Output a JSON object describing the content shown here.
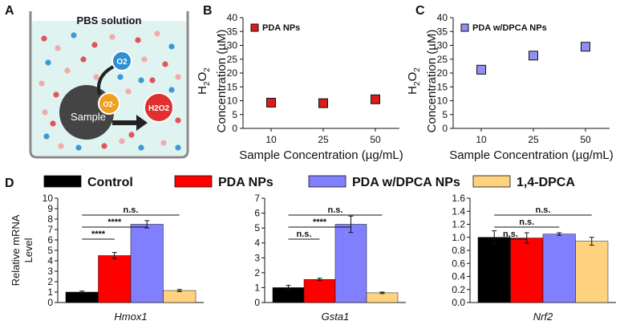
{
  "panels": {
    "a": "A",
    "b": "B",
    "c": "C",
    "d": "D"
  },
  "schematic": {
    "title": "PBS solution",
    "sample_label": "Sample",
    "o2_label": "O2",
    "o2_minus_label": "O2-",
    "h2o2_label": "H2O2"
  },
  "legend_d": [
    "Control",
    "PDA NPs",
    "PDA w/DPCA NPs",
    "1,4-DPCA"
  ],
  "colors": {
    "control": "#000000",
    "pda": "#ff0000",
    "pda_dpca": "#8080ff",
    "dpca": "#ffd27f",
    "marker_b": "#d91c1c",
    "marker_c": "#8f8ff5",
    "tank_water": "#dff3f1",
    "sample": "#444444"
  },
  "chart_data": [
    {
      "id": "B",
      "type": "scatter",
      "title": "",
      "legend": "PDA NPs",
      "xlabel": "Sample Concentration (µg/mL)",
      "ylabel": "H2O2 Concentration (µM)",
      "categories": [
        "10",
        "25",
        "50"
      ],
      "values": [
        9.3,
        9.1,
        10.5
      ],
      "errors": [
        1.2,
        1.2,
        1.0
      ],
      "ylim": [
        0,
        40
      ],
      "yticks": [
        "0",
        "5",
        "10",
        "15",
        "20",
        "25",
        "30",
        "35",
        "40"
      ]
    },
    {
      "id": "C",
      "type": "scatter",
      "title": "",
      "legend": "PDA w/DPCA NPs",
      "xlabel": "Sample Concentration (µg/mL)",
      "ylabel": "H2O2 Concentration (µM)",
      "categories": [
        "10",
        "25",
        "50"
      ],
      "values": [
        21.2,
        26.3,
        29.5
      ],
      "errors": [
        1.0,
        1.0,
        1.0
      ],
      "ylim": [
        0,
        40
      ],
      "yticks": [
        "0",
        "5",
        "10",
        "15",
        "20",
        "25",
        "30",
        "35",
        "40"
      ]
    },
    {
      "id": "D1",
      "type": "bar",
      "gene": "Hmox1",
      "ylabel": "Relative mRNA Level",
      "series": [
        {
          "name": "Control",
          "value": 1.0,
          "error": 0.1
        },
        {
          "name": "PDA NPs",
          "value": 4.5,
          "error": 0.3
        },
        {
          "name": "PDA w/DPCA NPs",
          "value": 7.5,
          "error": 0.35
        },
        {
          "name": "1,4-DPCA",
          "value": 1.15,
          "error": 0.1
        }
      ],
      "ylim": [
        0,
        10
      ],
      "yticks": [
        "0",
        "1",
        "2",
        "3",
        "4",
        "5",
        "6",
        "7",
        "8",
        "9",
        "10"
      ],
      "significance": [
        {
          "from": 0,
          "to": 3,
          "label": "n.s."
        },
        {
          "from": 0,
          "to": 2,
          "label": "****"
        },
        {
          "from": 0,
          "to": 1,
          "label": "****"
        }
      ]
    },
    {
      "id": "D2",
      "type": "bar",
      "gene": "Gsta1",
      "ylabel": "",
      "series": [
        {
          "name": "Control",
          "value": 1.0,
          "error": 0.15
        },
        {
          "name": "PDA NPs",
          "value": 1.55,
          "error": 0.08
        },
        {
          "name": "PDA w/DPCA NPs",
          "value": 5.25,
          "error": 0.55
        },
        {
          "name": "1,4-DPCA",
          "value": 0.65,
          "error": 0.05
        }
      ],
      "ylim": [
        0,
        7
      ],
      "yticks": [
        "0",
        "1",
        "2",
        "3",
        "4",
        "5",
        "6",
        "7"
      ],
      "significance": [
        {
          "from": 0,
          "to": 3,
          "label": "n.s."
        },
        {
          "from": 0,
          "to": 2,
          "label": "****"
        },
        {
          "from": 0,
          "to": 1,
          "label": "n.s."
        }
      ]
    },
    {
      "id": "D3",
      "type": "bar",
      "gene": "Nrf2",
      "ylabel": "",
      "series": [
        {
          "name": "Control",
          "value": 1.0,
          "error": 0.1
        },
        {
          "name": "PDA NPs",
          "value": 0.99,
          "error": 0.08
        },
        {
          "name": "PDA w/DPCA NPs",
          "value": 1.05,
          "error": 0.02
        },
        {
          "name": "1,4-DPCA",
          "value": 0.94,
          "error": 0.06
        }
      ],
      "ylim": [
        0,
        1.6
      ],
      "yticks": [
        "0.0",
        "0.2",
        "0.4",
        "0.6",
        "0.8",
        "1.0",
        "1.2",
        "1.4",
        "1.6"
      ],
      "significance": [
        {
          "from": 0,
          "to": 3,
          "label": "n.s."
        },
        {
          "from": 0,
          "to": 2,
          "label": "n.s."
        },
        {
          "from": 0,
          "to": 1,
          "label": "n.s."
        }
      ]
    }
  ]
}
